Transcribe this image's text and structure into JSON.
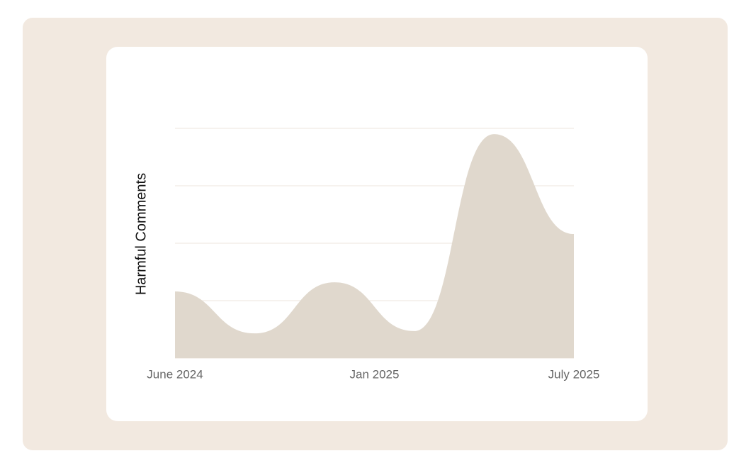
{
  "chart_data": {
    "type": "area",
    "y_label": "Harmful Comments",
    "x": [
      0,
      1,
      2,
      3,
      4,
      5
    ],
    "xlim": [
      0,
      5
    ],
    "xticks": [
      {
        "value": 0,
        "label": "June 2024"
      },
      {
        "value": 2.5,
        "label": "Jan 2025"
      },
      {
        "value": 5,
        "label": "July 2025"
      }
    ],
    "values": [
      1.16,
      0.43,
      1.32,
      0.47,
      3.9,
      2.16
    ],
    "color": "#e0d8cd",
    "ylim": [
      0,
      4
    ],
    "yticks": [
      0,
      1,
      2,
      3,
      4
    ],
    "grid": true
  }
}
